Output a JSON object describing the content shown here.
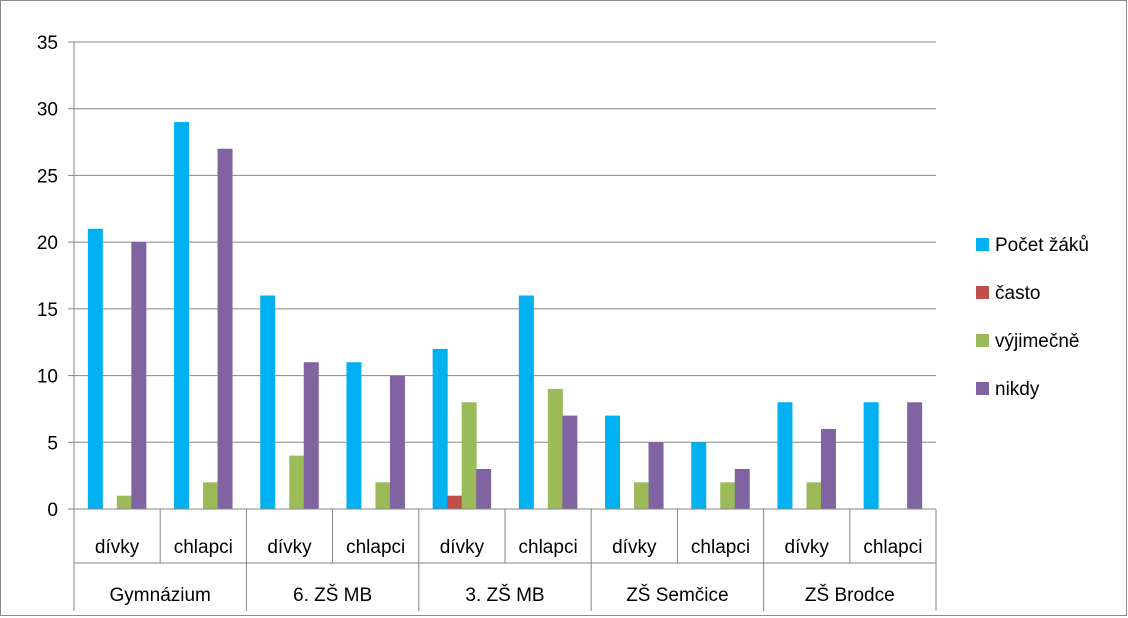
{
  "chart_data": {
    "type": "bar",
    "categories": [
      {
        "group": "Gymnázium",
        "sub": "dívky"
      },
      {
        "group": "Gymnázium",
        "sub": "chlapci"
      },
      {
        "group": "6. ZŠ MB",
        "sub": "dívky"
      },
      {
        "group": "6. ZŠ MB",
        "sub": "chlapci"
      },
      {
        "group": "3. ZŠ MB",
        "sub": "dívky"
      },
      {
        "group": "3. ZŠ MB",
        "sub": "chlapci"
      },
      {
        "group": "ZŠ Semčice",
        "sub": "dívky"
      },
      {
        "group": "ZŠ Semčice",
        "sub": "chlapci"
      },
      {
        "group": "ZŠ Brodce",
        "sub": "dívky"
      },
      {
        "group": "ZŠ Brodce",
        "sub": "chlapci"
      }
    ],
    "groups": [
      "Gymnázium",
      "6. ZŠ MB",
      "3. ZŠ MB",
      "ZŠ Semčice",
      "ZŠ Brodce"
    ],
    "series": [
      {
        "name": "Počet žáků",
        "color": "#00b0f0",
        "values": [
          21,
          29,
          16,
          11,
          12,
          16,
          7,
          5,
          8,
          8
        ]
      },
      {
        "name": "často",
        "color": "#c0504d",
        "values": [
          0,
          0,
          0,
          0,
          1,
          0,
          0,
          0,
          0,
          0
        ]
      },
      {
        "name": "výjimečně",
        "color": "#9bbb59",
        "values": [
          1,
          2,
          4,
          2,
          8,
          9,
          2,
          2,
          2,
          0
        ]
      },
      {
        "name": "nikdy",
        "color": "#8064a2",
        "values": [
          20,
          27,
          11,
          10,
          3,
          7,
          5,
          3,
          6,
          8
        ]
      }
    ],
    "ylim": [
      0,
      35
    ],
    "yticks": [
      0,
      5,
      10,
      15,
      20,
      25,
      30,
      35
    ],
    "grid": true,
    "legend": "right",
    "xlabel": "",
    "ylabel": ""
  }
}
